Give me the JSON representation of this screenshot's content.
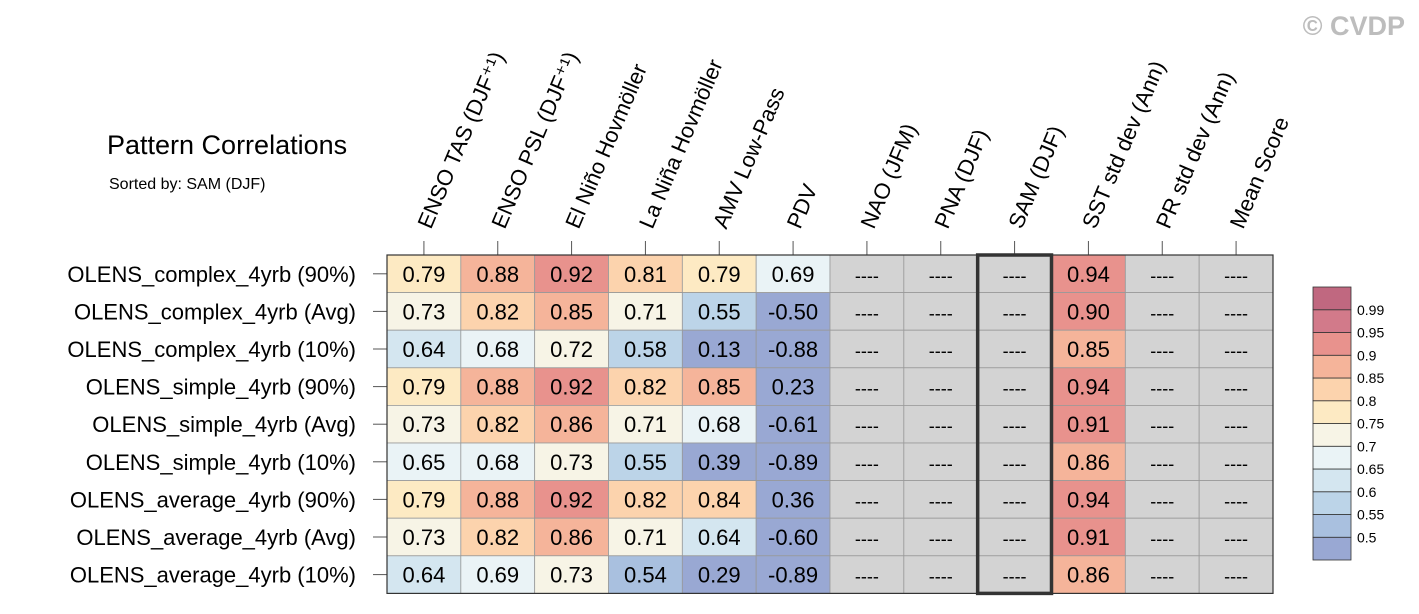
{
  "watermark": "© CVDP",
  "chart_data": {
    "type": "heatmap",
    "title": "Pattern Correlations",
    "subtitle": "Sorted by: SAM (DJF)",
    "columns": [
      "ENSO TAS (DJF⁺¹)",
      "ENSO PSL (DJF⁺¹)",
      "El Niño Hovmöller",
      "La Niña Hovmöller",
      "AMV Low-Pass",
      "PDV",
      "NAO (JFM)",
      "PNA (DJF)",
      "SAM (DJF)",
      "SST std dev (Ann)",
      "PR std dev (Ann)",
      "Mean Score"
    ],
    "highlighted_column": "SAM (DJF)",
    "missing_label": "----",
    "rows": [
      {
        "name": "OLENS_complex_4yrb (90%)",
        "values": [
          0.79,
          0.88,
          0.92,
          0.81,
          0.79,
          0.69,
          null,
          null,
          null,
          0.94,
          null,
          null
        ]
      },
      {
        "name": "OLENS_complex_4yrb (Avg)",
        "values": [
          0.73,
          0.82,
          0.85,
          0.71,
          0.55,
          -0.5,
          null,
          null,
          null,
          0.9,
          null,
          null
        ]
      },
      {
        "name": "OLENS_complex_4yrb (10%)",
        "values": [
          0.64,
          0.68,
          0.72,
          0.58,
          0.13,
          -0.88,
          null,
          null,
          null,
          0.85,
          null,
          null
        ]
      },
      {
        "name": "OLENS_simple_4yrb (90%)",
        "values": [
          0.79,
          0.88,
          0.92,
          0.82,
          0.85,
          0.23,
          null,
          null,
          null,
          0.94,
          null,
          null
        ]
      },
      {
        "name": "OLENS_simple_4yrb (Avg)",
        "values": [
          0.73,
          0.82,
          0.86,
          0.71,
          0.68,
          -0.61,
          null,
          null,
          null,
          0.91,
          null,
          null
        ]
      },
      {
        "name": "OLENS_simple_4yrb (10%)",
        "values": [
          0.65,
          0.68,
          0.73,
          0.55,
          0.39,
          -0.89,
          null,
          null,
          null,
          0.86,
          null,
          null
        ]
      },
      {
        "name": "OLENS_average_4yrb (90%)",
        "values": [
          0.79,
          0.88,
          0.92,
          0.82,
          0.84,
          0.36,
          null,
          null,
          null,
          0.94,
          null,
          null
        ]
      },
      {
        "name": "OLENS_average_4yrb (Avg)",
        "values": [
          0.73,
          0.82,
          0.86,
          0.71,
          0.64,
          -0.6,
          null,
          null,
          null,
          0.91,
          null,
          null
        ]
      },
      {
        "name": "OLENS_average_4yrb (10%)",
        "values": [
          0.64,
          0.69,
          0.73,
          0.54,
          0.29,
          -0.89,
          null,
          null,
          null,
          0.86,
          null,
          null
        ]
      }
    ],
    "colorbar": {
      "levels": [
        0.5,
        0.55,
        0.6,
        0.65,
        0.7,
        0.75,
        0.8,
        0.85,
        0.9,
        0.95,
        0.99
      ],
      "tick_labels": [
        "0.99",
        "0.95",
        "0.9",
        "0.85",
        "0.8",
        "0.75",
        "0.7",
        "0.65",
        "0.6",
        "0.55",
        "0.5"
      ],
      "colors": [
        "#99a8d3",
        "#a9c0df",
        "#bcd4e8",
        "#d4e6f0",
        "#eaf3f6",
        "#f7f4e6",
        "#fdeac3",
        "#fcd3ad",
        "#f5b49a",
        "#e8928d",
        "#d27a8a",
        "#c06880"
      ],
      "missing_color": "#d3d3d3"
    }
  }
}
